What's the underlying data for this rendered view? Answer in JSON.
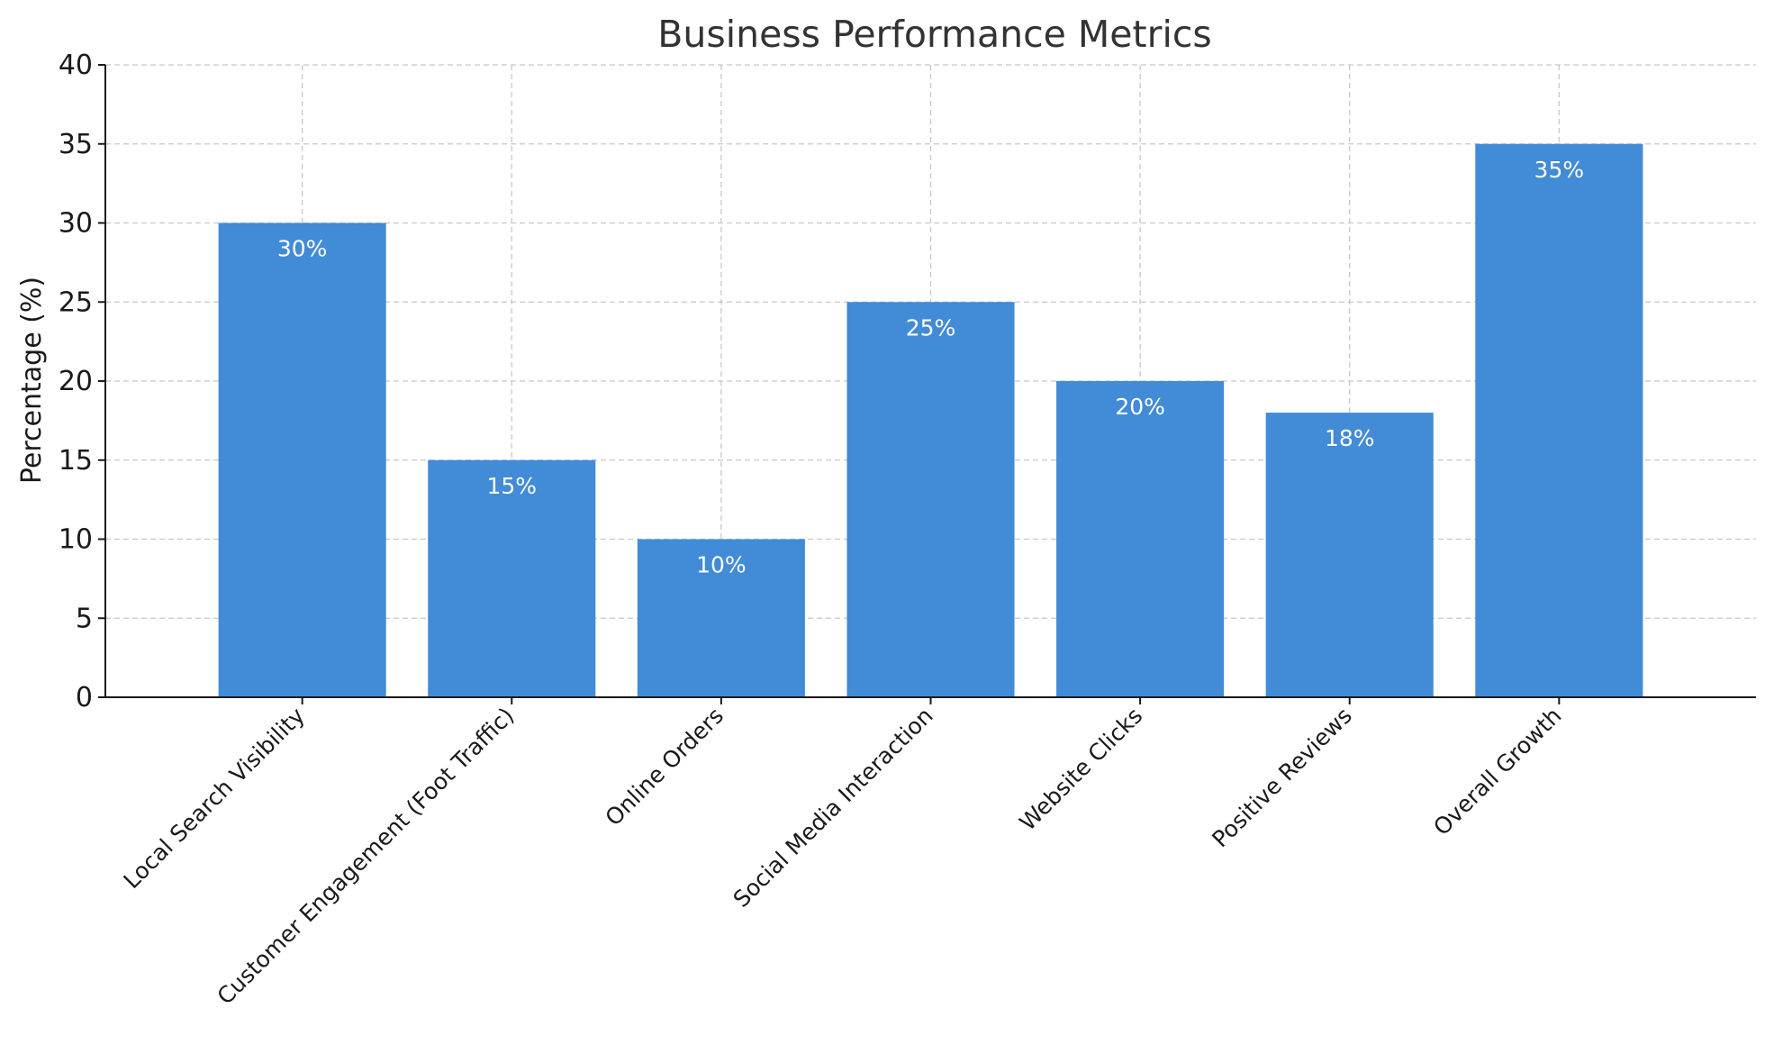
{
  "chart_data": {
    "type": "bar",
    "title": "Business Performance Metrics",
    "xlabel": "",
    "ylabel": "Percentage (%)",
    "ylim": [
      0,
      40
    ],
    "yticks": [
      0,
      5,
      10,
      15,
      20,
      25,
      30,
      35,
      40
    ],
    "grid": true,
    "bar_color": "#418bd7",
    "categories": [
      "Local Search Visibility",
      "Customer Engagement (Foot Traffic)",
      "Online Orders",
      "Social Media Interaction",
      "Website Clicks",
      "Positive Reviews",
      "Overall Growth"
    ],
    "values": [
      30,
      15,
      10,
      25,
      20,
      18,
      35
    ],
    "data_labels": [
      "30%",
      "15%",
      "10%",
      "25%",
      "20%",
      "18%",
      "35%"
    ]
  }
}
